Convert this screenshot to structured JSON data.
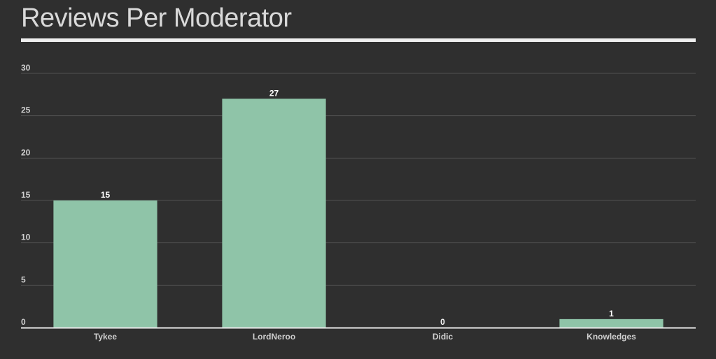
{
  "header": {
    "title": "Reviews Per Moderator"
  },
  "chart_data": {
    "type": "bar",
    "title": "Reviews Per Moderator",
    "categories": [
      "Tykee",
      "LordNeroo",
      "Didic",
      "Knowledges"
    ],
    "values": [
      15,
      27,
      0,
      1
    ],
    "xlabel": "",
    "ylabel": "",
    "ylim": [
      0,
      30
    ],
    "yticks": [
      "0",
      "5",
      "10",
      "15",
      "20",
      "25",
      "30"
    ],
    "grid": true,
    "legend": "none",
    "colors": {
      "bar": "#8fc4a8",
      "grid": "#505050",
      "axis": "#e8e8e8",
      "background": "#2f2f2f"
    }
  }
}
